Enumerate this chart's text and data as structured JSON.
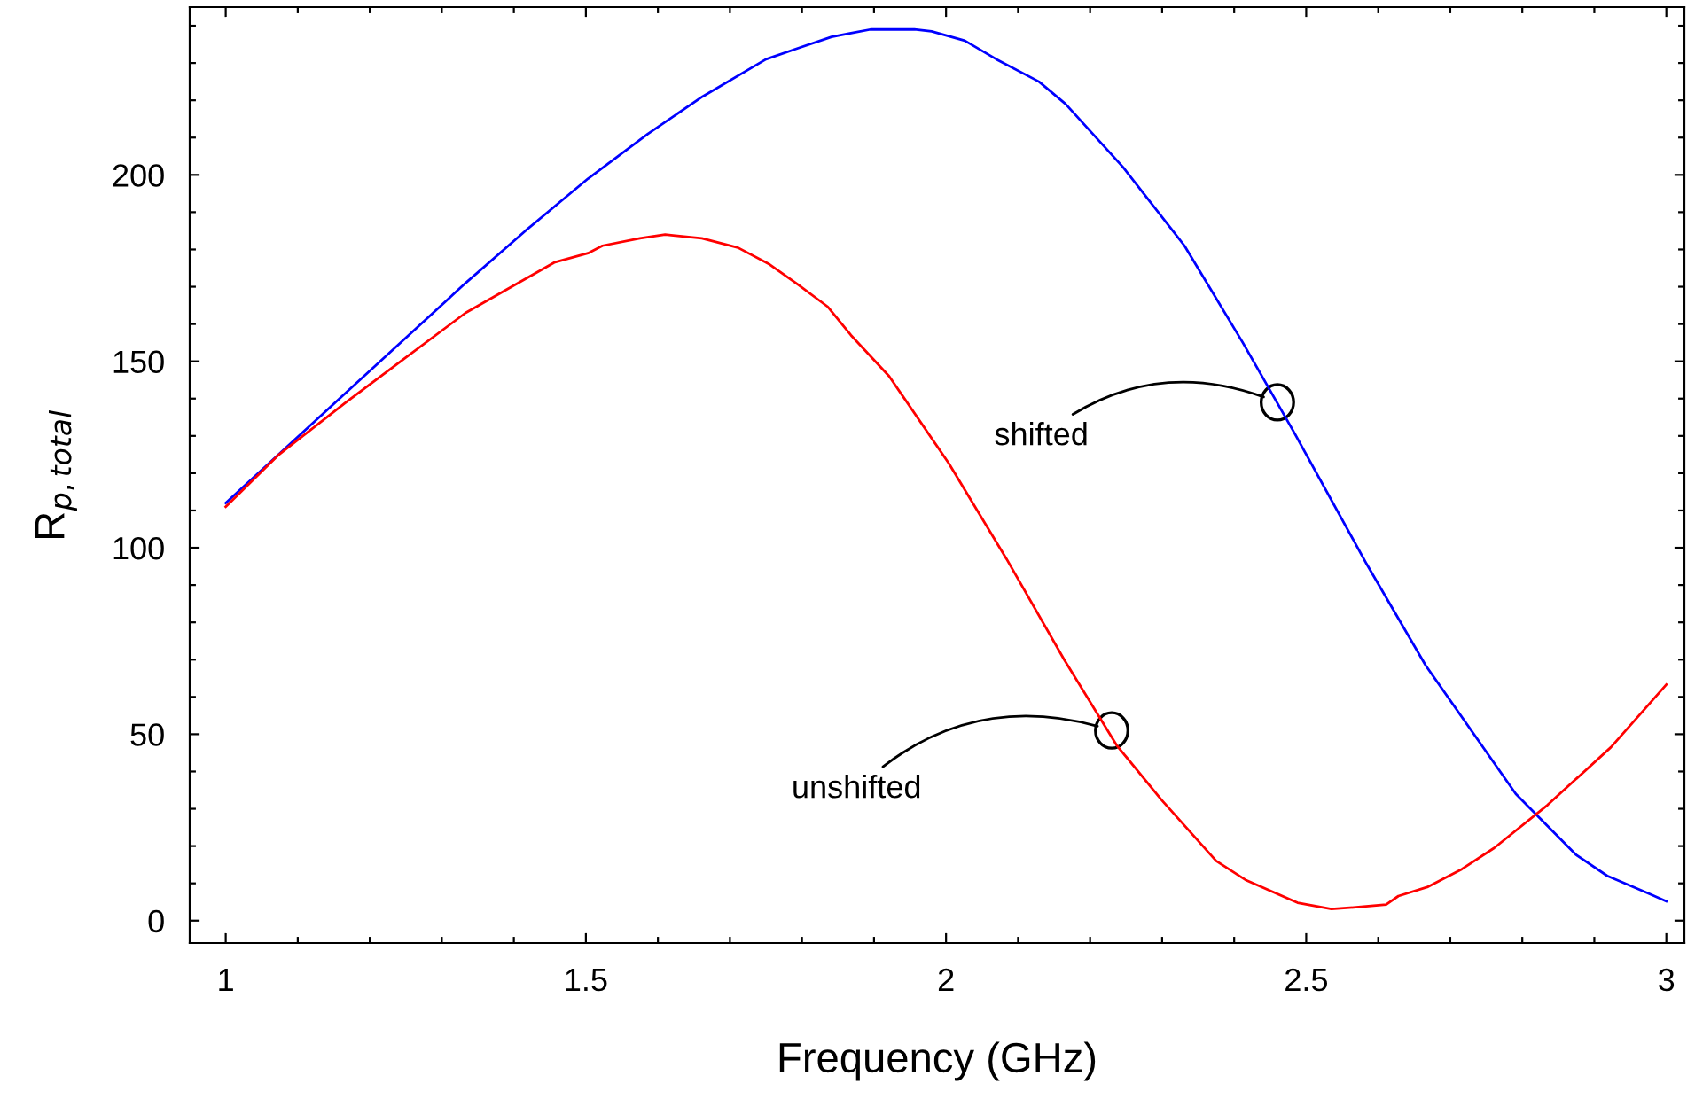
{
  "chart_data": {
    "type": "line",
    "xlabel": "Frequency (GHz)",
    "ylabel": "R$_{p,total}$",
    "xlim": [
      0.95,
      3.025
    ],
    "ylim": [
      -6,
      245
    ],
    "xticks": [
      1,
      {
        "value": 1.1,
        "label": null
      },
      {
        "value": 1.2,
        "label": null
      },
      {
        "value": 1.3,
        "label": null
      },
      {
        "value": 1.4,
        "label": null
      },
      1.5,
      {
        "value": 1.6,
        "label": null
      },
      {
        "value": 1.7,
        "label": null
      },
      {
        "value": 1.8,
        "label": null
      },
      {
        "value": 1.9,
        "label": null
      },
      2,
      {
        "value": 2.1,
        "label": null
      },
      {
        "value": 2.2,
        "label": null
      },
      {
        "value": 2.3,
        "label": null
      },
      {
        "value": 2.4,
        "label": null
      },
      2.5,
      {
        "value": 2.6,
        "label": null
      },
      {
        "value": 2.7,
        "label": null
      },
      {
        "value": 2.8,
        "label": null
      },
      {
        "value": 2.9,
        "label": null
      },
      3
    ],
    "yticks": [
      0,
      {
        "value": 10,
        "label": null
      },
      {
        "value": 20,
        "label": null
      },
      {
        "value": 30,
        "label": null
      },
      {
        "value": 40,
        "label": null
      },
      50,
      {
        "value": 60,
        "label": null
      },
      {
        "value": 70,
        "label": null
      },
      {
        "value": 80,
        "label": null
      },
      {
        "value": 90,
        "label": null
      },
      100,
      {
        "value": 110,
        "label": null
      },
      {
        "value": 120,
        "label": null
      },
      {
        "value": 130,
        "label": null
      },
      {
        "value": 140,
        "label": null
      },
      150,
      {
        "value": 160,
        "label": null
      },
      {
        "value": 170,
        "label": null
      },
      {
        "value": 180,
        "label": null
      },
      {
        "value": 190,
        "label": null
      },
      200,
      {
        "value": 210,
        "label": null
      },
      {
        "value": 220,
        "label": null
      },
      {
        "value": 230,
        "label": null
      },
      {
        "value": 240,
        "label": null
      }
    ],
    "grid": false,
    "marker": "none",
    "line_style": "solid",
    "series": [
      {
        "color": "#0000ff",
        "x": [
          1,
          1.167,
          1.333,
          1.416,
          1.503,
          1.586,
          1.662,
          1.75,
          1.795,
          1.841,
          1.868,
          1.895,
          1.956,
          1.98,
          2.026,
          2.07,
          2.129,
          2.166,
          2.246,
          2.331,
          2.412,
          2.483,
          2.584,
          2.666,
          2.791,
          2.875,
          2.918,
          2.975,
          3.0
        ],
        "values": [
          112,
          141.6,
          171,
          185,
          199,
          211,
          221,
          231,
          234,
          237,
          238,
          239,
          239,
          238.5,
          236,
          231,
          225,
          219,
          202,
          181,
          155,
          131,
          95.6,
          68.4,
          34,
          17.6,
          12,
          7.3,
          5.2
        ]
      },
      {
        "color": "#ff0000",
        "x": [
          1,
          1.074,
          1.167,
          1.25,
          1.333,
          1.456,
          1.503,
          1.523,
          1.575,
          1.61,
          1.661,
          1.711,
          1.755,
          1.795,
          1.836,
          1.868,
          1.921,
          2.004,
          2.084,
          2.164,
          2.237,
          2.299,
          2.375,
          2.417,
          2.488,
          2.535,
          2.576,
          2.611,
          2.628,
          2.668,
          2.716,
          2.761,
          2.835,
          2.923,
          3.0
        ],
        "values": [
          111,
          125,
          139,
          151,
          163,
          176.5,
          179,
          181,
          183,
          184,
          183,
          180.5,
          176,
          170.5,
          164.6,
          157,
          146,
          122.6,
          97,
          70,
          47,
          32.4,
          16,
          10.8,
          4.8,
          3.1,
          3.7,
          4.3,
          6.6,
          9,
          13.8,
          19.5,
          31,
          46.5,
          63.3
        ]
      }
    ],
    "annotations": [
      {
        "text": "shifted",
        "x": 2.46,
        "y": 139
      },
      {
        "text": "unshifted",
        "x": 2.23,
        "y": 51
      }
    ]
  }
}
